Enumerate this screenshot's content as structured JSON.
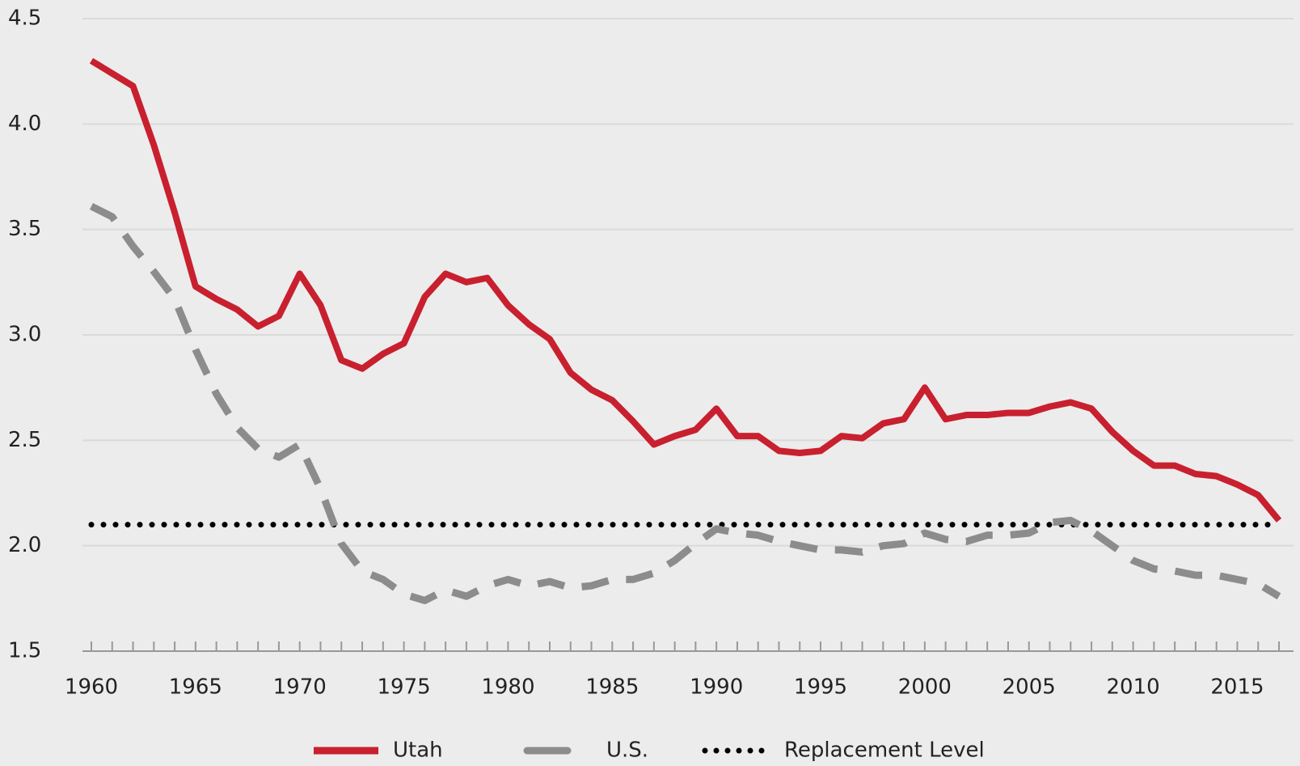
{
  "chart_data": {
    "type": "line",
    "x": [
      1960,
      1961,
      1962,
      1963,
      1964,
      1965,
      1966,
      1967,
      1968,
      1969,
      1970,
      1971,
      1972,
      1973,
      1974,
      1975,
      1976,
      1977,
      1978,
      1979,
      1980,
      1981,
      1982,
      1983,
      1984,
      1985,
      1986,
      1987,
      1988,
      1989,
      1990,
      1991,
      1992,
      1993,
      1994,
      1995,
      1996,
      1997,
      1998,
      1999,
      2000,
      2001,
      2002,
      2003,
      2004,
      2005,
      2006,
      2007,
      2008,
      2009,
      2010,
      2011,
      2012,
      2013,
      2014,
      2015,
      2016,
      2017
    ],
    "series": [
      {
        "name": "Utah",
        "color": "#c8202f",
        "style": "solid",
        "values": [
          4.3,
          4.24,
          4.18,
          3.9,
          3.58,
          3.23,
          3.17,
          3.12,
          3.04,
          3.09,
          3.29,
          3.14,
          2.88,
          2.84,
          2.91,
          2.96,
          3.18,
          3.29,
          3.25,
          3.27,
          3.14,
          3.05,
          2.98,
          2.82,
          2.74,
          2.69,
          2.59,
          2.48,
          2.52,
          2.55,
          2.65,
          2.52,
          2.52,
          2.45,
          2.44,
          2.45,
          2.52,
          2.51,
          2.58,
          2.6,
          2.75,
          2.6,
          2.62,
          2.62,
          2.63,
          2.63,
          2.66,
          2.68,
          2.65,
          2.54,
          2.45,
          2.38,
          2.38,
          2.34,
          2.33,
          2.29,
          2.24,
          2.12
        ]
      },
      {
        "name": "U.S.",
        "color": "#8c8c8c",
        "style": "dashed",
        "values": [
          3.61,
          3.56,
          3.42,
          3.3,
          3.17,
          2.93,
          2.72,
          2.56,
          2.46,
          2.42,
          2.48,
          2.27,
          2.01,
          1.88,
          1.84,
          1.77,
          1.74,
          1.79,
          1.76,
          1.81,
          1.84,
          1.81,
          1.83,
          1.8,
          1.81,
          1.84,
          1.84,
          1.87,
          1.93,
          2.01,
          2.08,
          2.06,
          2.05,
          2.02,
          2.0,
          1.98,
          1.98,
          1.97,
          2.0,
          2.01,
          2.06,
          2.03,
          2.02,
          2.05,
          2.05,
          2.06,
          2.11,
          2.12,
          2.07,
          2.0,
          1.93,
          1.89,
          1.88,
          1.86,
          1.86,
          1.84,
          1.82,
          1.76
        ]
      }
    ],
    "reference_line": {
      "name": "Replacement Level",
      "value": 2.1,
      "color": "#000000",
      "style": "dotted"
    },
    "xlim": [
      1960,
      2017
    ],
    "xticks": [
      1960,
      1965,
      1970,
      1975,
      1980,
      1985,
      1990,
      1995,
      2000,
      2005,
      2010,
      2015
    ],
    "ylim": [
      1.5,
      4.5
    ],
    "yticks": [
      {
        "value": 1.5,
        "label": "1.5"
      },
      {
        "value": 2.0,
        "label": "2.0"
      },
      {
        "value": 2.5,
        "label": "2.5"
      },
      {
        "value": 3.0,
        "label": "3.0"
      },
      {
        "value": 3.5,
        "label": "3.5"
      },
      {
        "value": 4.0,
        "label": "4.0"
      },
      {
        "value": 4.5,
        "label": "4.5"
      }
    ],
    "grid": true,
    "legend": "bottom"
  }
}
